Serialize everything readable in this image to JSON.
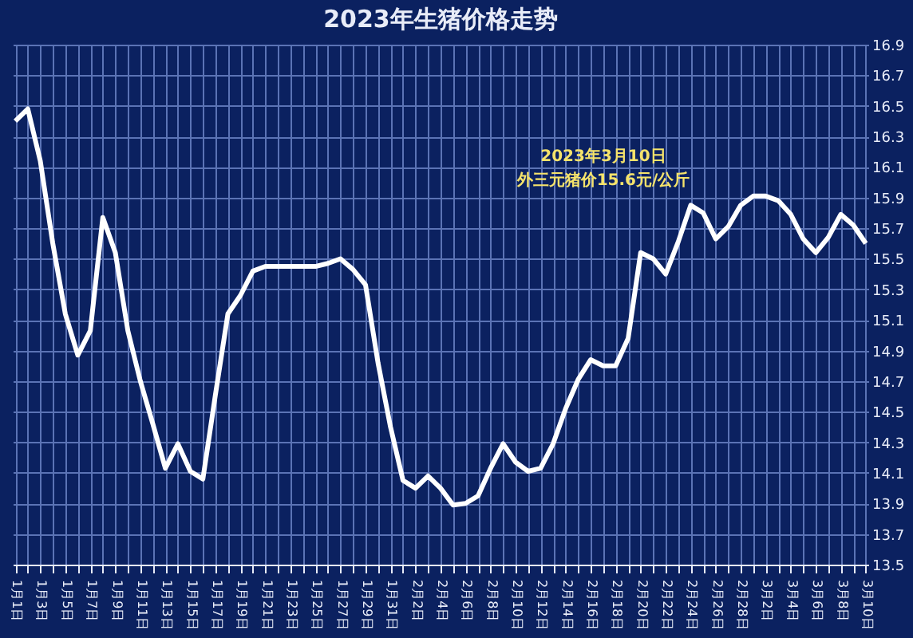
{
  "chart_data": {
    "type": "line",
    "title": "2023年生猪价格走势",
    "categories": [
      "1月1日",
      null,
      "1月3日",
      null,
      "1月5日",
      null,
      "1月7日",
      null,
      "1月9日",
      null,
      "1月11日",
      null,
      "1月13日",
      null,
      "1月15日",
      null,
      "1月17日",
      null,
      "1月19日",
      null,
      "1月21日",
      null,
      "1月23日",
      null,
      "1月25日",
      null,
      "1月27日",
      null,
      "1月29日",
      null,
      "1月31日",
      null,
      "2月2日",
      null,
      "2月4日",
      null,
      "2月6日",
      null,
      "2月8日",
      null,
      "2月10日",
      null,
      "2月12日",
      null,
      "2月14日",
      null,
      "2月16日",
      null,
      "2月18日",
      null,
      "2月20日",
      null,
      "2月22日",
      null,
      "2月24日",
      null,
      "2月26日",
      null,
      "2月28日",
      null,
      "3月2日",
      null,
      "3月4日",
      null,
      "3月6日",
      null,
      "3月8日",
      null,
      "3月10日"
    ],
    "series": [
      {
        "color": "#ffffff",
        "values": [
          16.4,
          16.48,
          16.14,
          15.6,
          15.14,
          14.87,
          15.03,
          15.77,
          15.54,
          15.03,
          14.7,
          14.42,
          14.13,
          14.29,
          14.11,
          14.06,
          14.61,
          15.14,
          15.26,
          15.42,
          15.45,
          15.45,
          15.45,
          15.45,
          15.45,
          15.47,
          15.5,
          15.43,
          15.33,
          14.82,
          14.4,
          14.05,
          14.0,
          14.08,
          14.0,
          13.89,
          13.9,
          13.95,
          14.13,
          14.29,
          14.17,
          14.11,
          14.13,
          14.29,
          14.52,
          14.71,
          14.84,
          14.8,
          14.8,
          14.98,
          15.54,
          15.5,
          15.4,
          15.61,
          15.85,
          15.8,
          15.63,
          15.71,
          15.85,
          15.91,
          15.91,
          15.88,
          15.79,
          15.63,
          15.54,
          15.64,
          15.79,
          15.72,
          15.6
        ]
      }
    ],
    "ylim": [
      13.5,
      16.9
    ],
    "yticks": [
      13.5,
      13.7,
      13.9,
      14.1,
      14.3,
      14.5,
      14.7,
      14.9,
      15.1,
      15.3,
      15.5,
      15.7,
      15.9,
      16.1,
      16.3,
      16.5,
      16.7,
      16.9
    ],
    "grid": true,
    "annotations": [
      "2023年3月10日",
      "外三元猪价15.6元/公斤"
    ]
  }
}
